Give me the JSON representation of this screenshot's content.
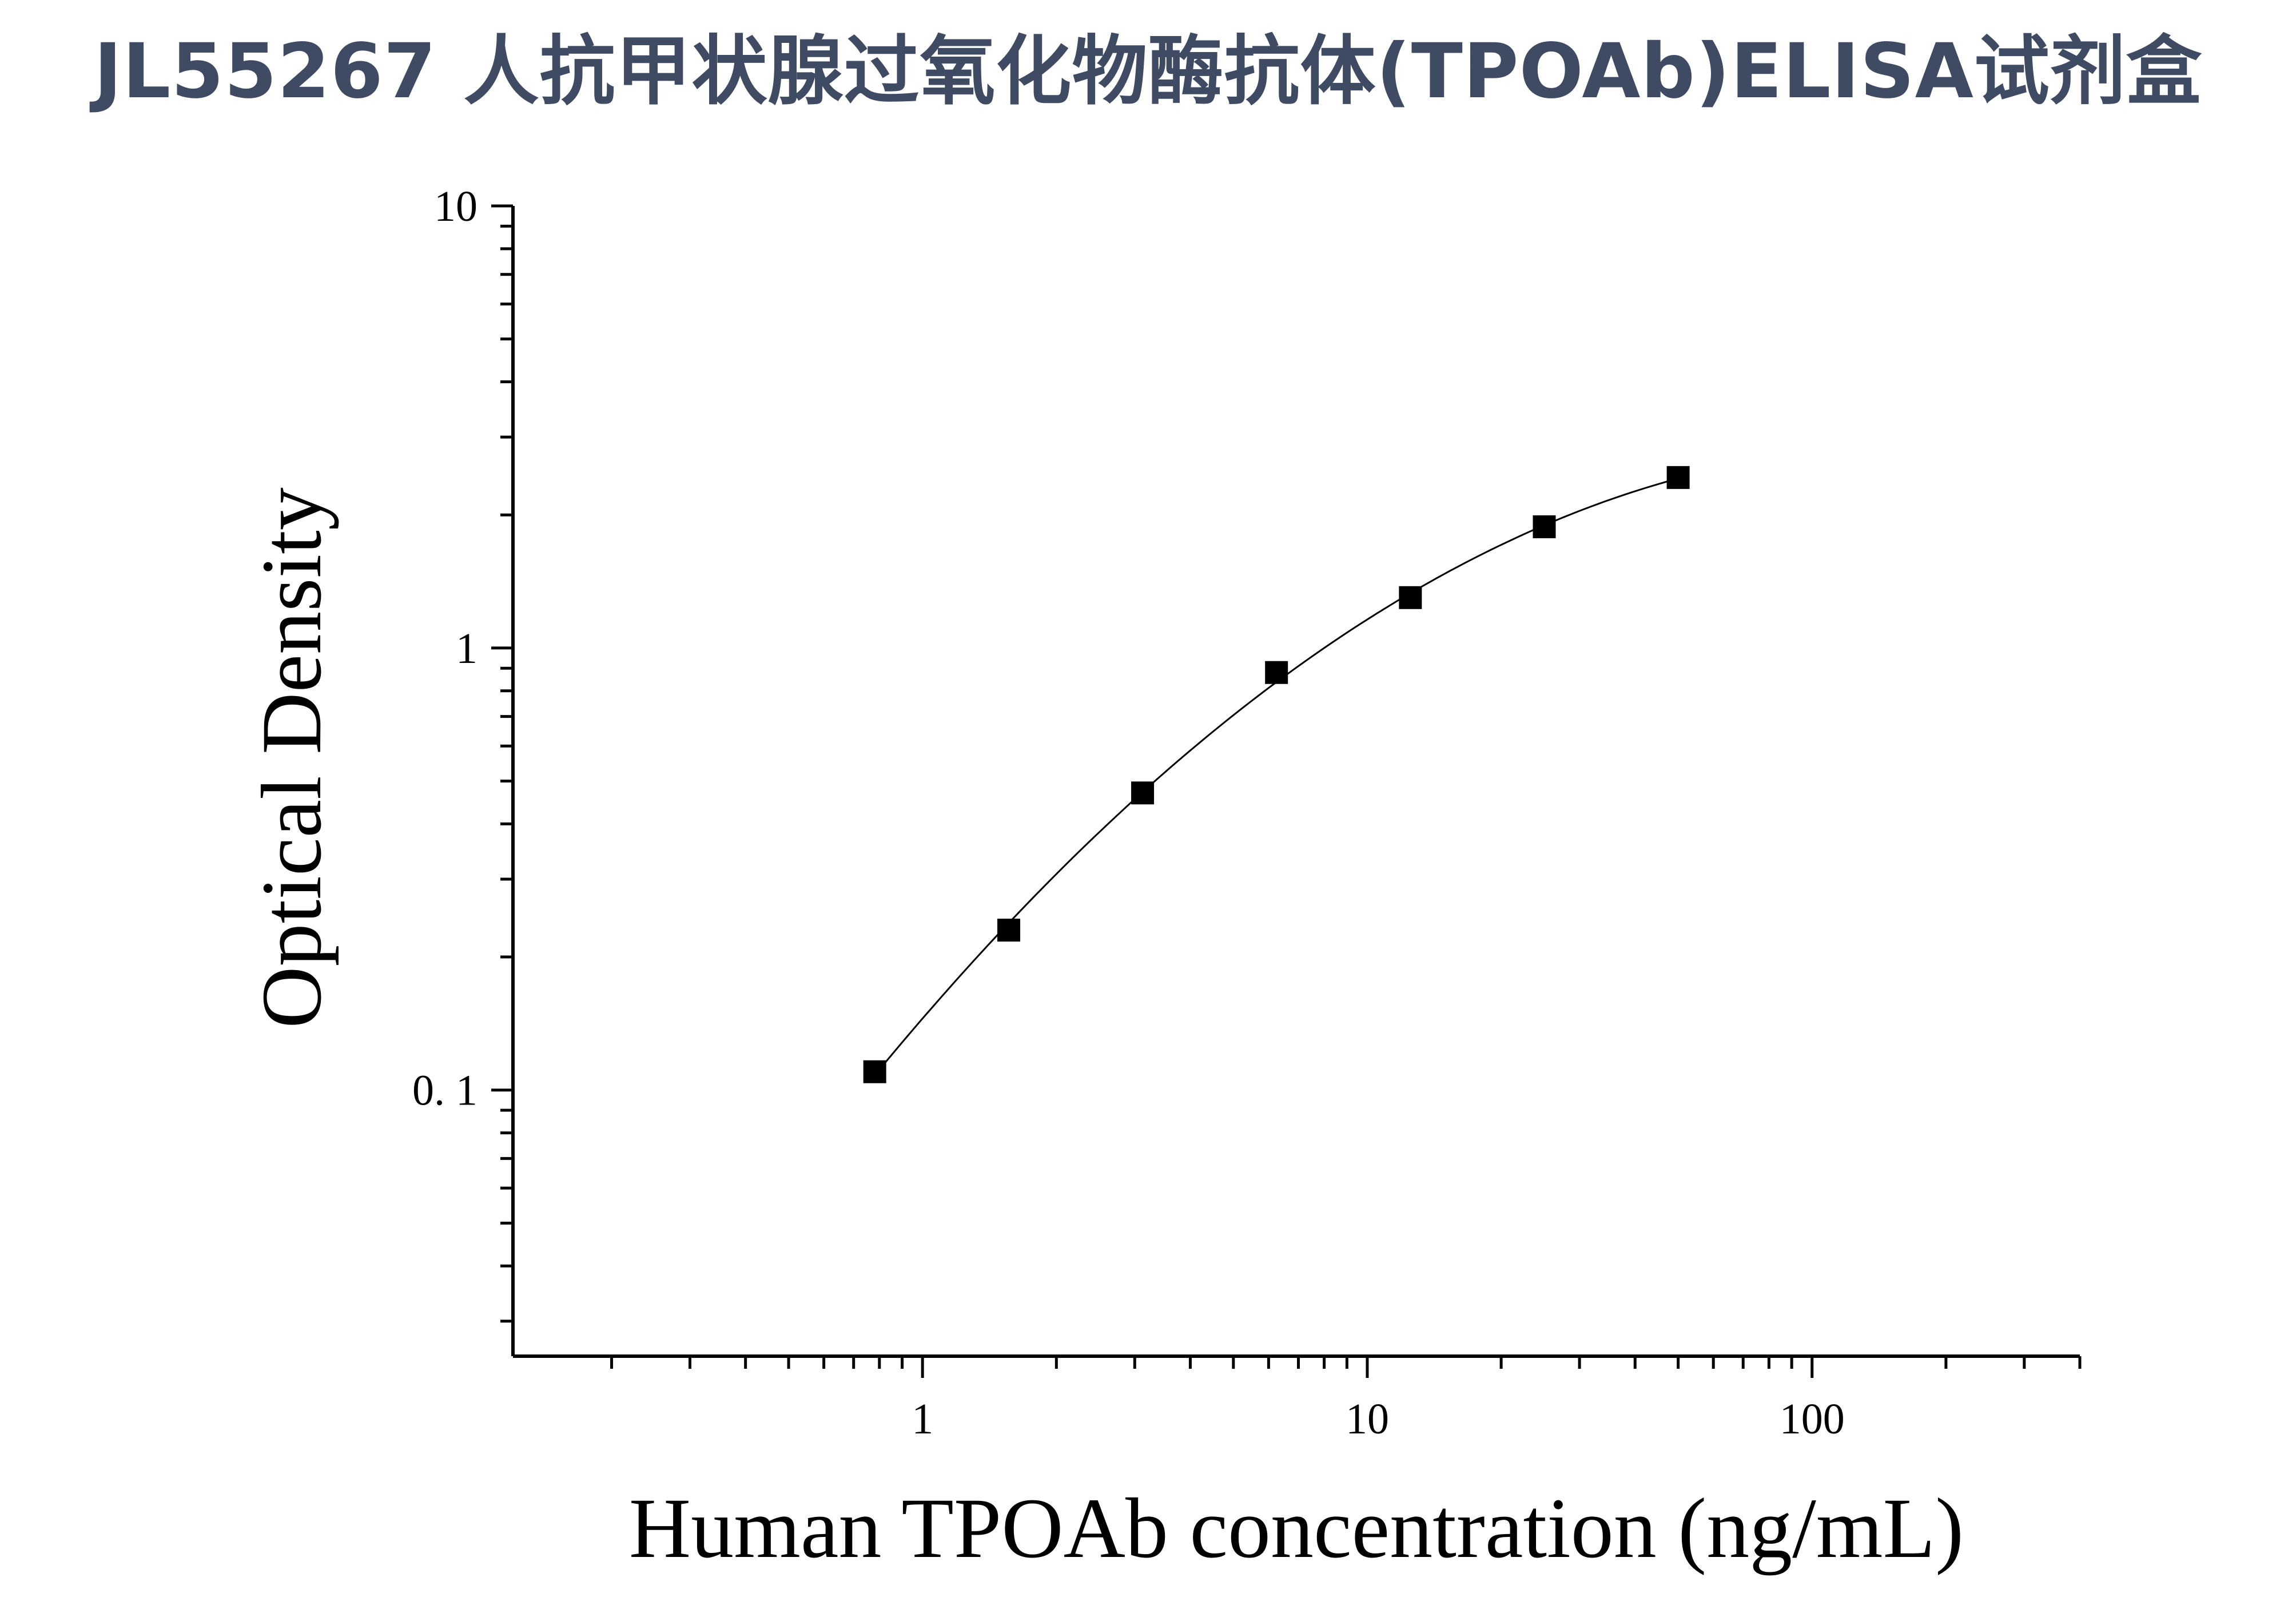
{
  "header": {
    "title": "JL55267 人抗甲状腺过氧化物酶抗体(TPOAb)ELISA试剂盒"
  },
  "chart_data": {
    "type": "scatter",
    "title": "JL55267 人抗甲状腺过氧化物酶抗体(TPOAb)ELISA试剂盒",
    "xlabel": "Human TPOAb concentration (ng/mL)",
    "ylabel": "Optical Density",
    "xscale": "log",
    "yscale": "log",
    "xlim": [
      0.12,
      400
    ],
    "ylim": [
      0.025,
      10
    ],
    "x_ticks": [
      "1",
      "10",
      "100"
    ],
    "y_ticks": [
      "0. 1",
      "1",
      "10"
    ],
    "grid": false,
    "legend": "none",
    "marker": "square",
    "marker_color": "#000000",
    "curve": "fitted",
    "series": [
      {
        "x": [
          0.781,
          1.563,
          3.125,
          6.25,
          12.5,
          25,
          50
        ],
        "y": [
          0.11,
          0.23,
          0.47,
          0.88,
          1.3,
          1.88,
          2.43
        ]
      }
    ]
  }
}
